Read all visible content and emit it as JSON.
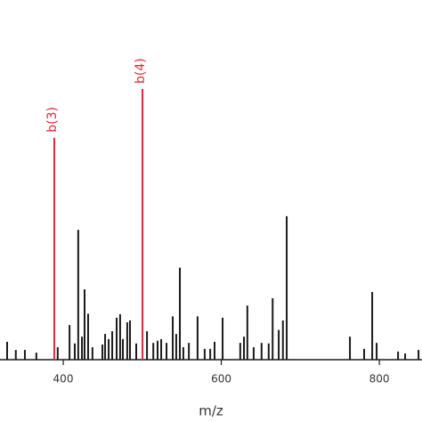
{
  "chart_data": {
    "type": "stem",
    "x_label": "m/z",
    "xlim": [
      320,
      854
    ],
    "xticks": [
      400,
      600,
      800
    ],
    "ylim": [
      0,
      100
    ],
    "peaks": {
      "color": "#1a1a1a",
      "x": [
        329,
        340,
        351.5,
        366,
        393,
        408,
        414.6,
        419,
        423.7,
        427,
        431.5,
        437,
        449.6,
        453,
        457.5,
        462,
        467.6,
        472,
        475.5,
        481,
        484.5,
        492.4,
        506,
        514,
        519.4,
        524,
        530.7,
        538.6,
        543,
        547.6,
        552,
        559,
        570,
        579,
        586,
        591.5,
        601.7,
        624,
        628.7,
        633,
        641,
        651,
        660,
        665,
        672.7,
        678,
        682.8,
        762.8,
        780.8,
        791,
        796.6,
        823.7,
        832.7,
        849.6
      ],
      "values": [
        6.6,
        3.6,
        3.6,
        2.6,
        4.6,
        12.8,
        6,
        48,
        8.5,
        26,
        17,
        4.6,
        5.6,
        9.5,
        7.6,
        10.5,
        15.5,
        16.8,
        7.6,
        13.8,
        14.5,
        6,
        10.5,
        6.2,
        7,
        7.6,
        6.2,
        16,
        9.5,
        34,
        4.6,
        6.2,
        16,
        4,
        4,
        6.6,
        15.5,
        6.2,
        8.5,
        20,
        4.6,
        6.2,
        6,
        22.7,
        11,
        14.5,
        53,
        8.5,
        4,
        25,
        6.2,
        3,
        2.3,
        3.6
      ]
    },
    "annotated_peaks": {
      "color": "#e0283a",
      "labels": [
        "b(3)",
        "b(4)"
      ],
      "x": [
        388.7,
        500.3
      ],
      "values": [
        82,
        100
      ]
    }
  }
}
